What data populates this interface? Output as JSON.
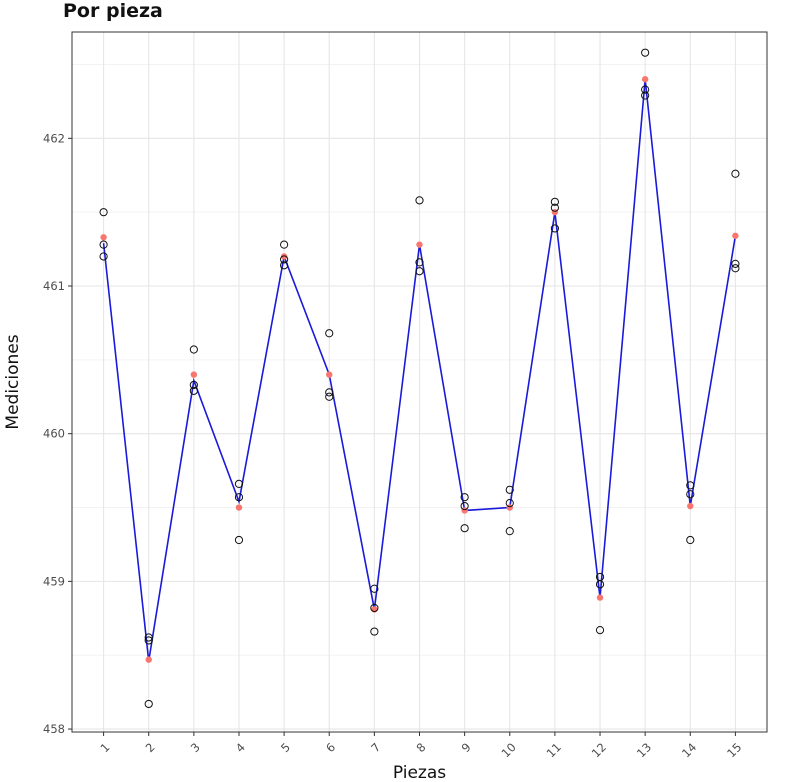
{
  "chart_data": {
    "type": "scatter",
    "title": "Por pieza",
    "xlabel": "Piezas",
    "ylabel": "Mediciones",
    "categories": [
      "1",
      "2",
      "3",
      "4",
      "5",
      "6",
      "7",
      "8",
      "9",
      "10",
      "11",
      "12",
      "13",
      "14",
      "15"
    ],
    "ylim": [
      457.98,
      462.72
    ],
    "yticks": [
      458,
      459,
      460,
      461,
      462
    ],
    "grid": true,
    "legend": "none",
    "series": [
      {
        "type": "points",
        "values": [
          [
            461.5,
            461.28,
            461.2
          ],
          [
            458.62,
            458.6,
            458.17
          ],
          [
            460.57,
            460.33,
            460.29
          ],
          [
            459.66,
            459.57,
            459.28
          ],
          [
            461.28,
            461.18,
            461.14
          ],
          [
            460.68,
            460.28,
            460.25
          ],
          [
            458.95,
            458.82,
            458.66
          ],
          [
            461.58,
            461.16,
            461.1
          ],
          [
            459.57,
            459.51,
            459.36
          ],
          [
            459.62,
            459.53,
            459.34
          ],
          [
            461.57,
            461.53,
            461.39
          ],
          [
            459.03,
            458.98,
            458.67
          ],
          [
            462.58,
            462.33,
            462.29
          ],
          [
            459.65,
            459.59,
            459.28
          ],
          [
            461.76,
            461.15,
            461.12
          ]
        ]
      },
      {
        "type": "means",
        "values": [
          461.33,
          458.47,
          460.4,
          459.5,
          461.2,
          460.4,
          458.81,
          461.28,
          459.48,
          459.5,
          461.5,
          458.89,
          462.4,
          459.51,
          461.34
        ]
      },
      {
        "type": "line",
        "values": [
          461.29,
          458.46,
          460.36,
          459.54,
          461.2,
          460.4,
          458.81,
          461.28,
          459.48,
          459.5,
          461.5,
          458.89,
          462.4,
          459.51,
          461.34
        ]
      }
    ],
    "colors": {
      "points": "#111111",
      "means": "#f8766d",
      "line": "#1a1adb",
      "grid_major": "#e6e6e6",
      "grid_minor": "#f3f3f3",
      "border": "#333333"
    }
  }
}
